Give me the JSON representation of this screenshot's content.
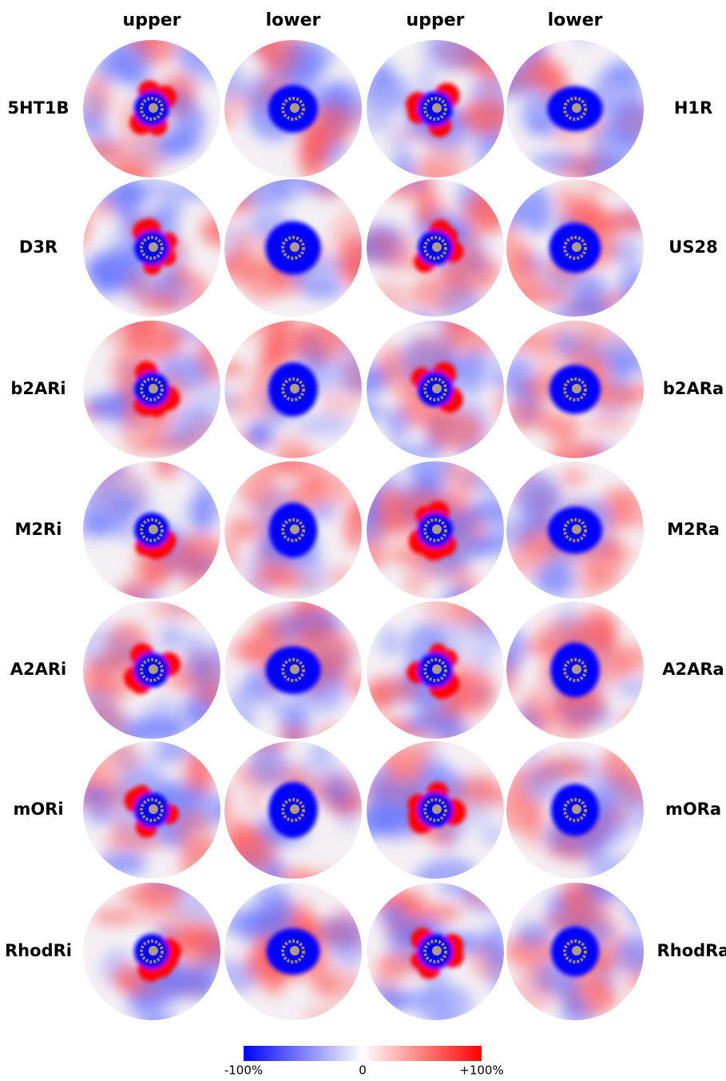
{
  "column_headers": [
    "upper",
    "lower",
    "upper",
    "lower"
  ],
  "left_labels": [
    "5HT1B",
    "D3R",
    "b2ARi",
    "M2Ri",
    "A2ARi",
    "mORi",
    "RhodRi"
  ],
  "right_labels": [
    "H1R",
    "US28",
    "b2ARa",
    "M2Ra",
    "A2ARa",
    "mORa",
    "RhodRa"
  ],
  "colorbar": {
    "labels": [
      "-100%",
      "0",
      "+100%"
    ]
  }
}
